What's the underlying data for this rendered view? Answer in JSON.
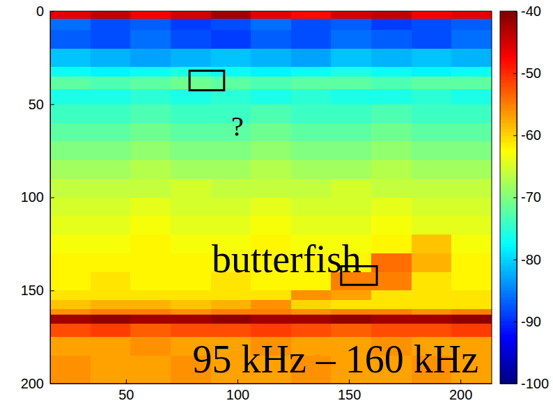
{
  "chart_data": {
    "type": "heatmap",
    "xlim": [
      16,
      214
    ],
    "ylim": [
      0,
      200
    ],
    "xticks": [
      50,
      100,
      150,
      200
    ],
    "yticks": [
      0,
      50,
      100,
      150,
      200
    ],
    "x_edges": [
      16,
      34,
      52,
      70,
      88,
      106,
      124,
      142,
      160,
      178,
      196,
      214
    ],
    "y_edges": [
      0,
      4,
      10,
      20,
      30,
      35,
      42,
      50,
      60,
      70,
      80,
      90,
      100,
      110,
      120,
      130,
      140,
      150,
      155,
      160,
      163,
      168,
      175,
      185,
      200
    ],
    "cells": [
      [
        -46,
        -44,
        -47,
        -45,
        -42,
        -46,
        -48,
        -45,
        -44,
        -47,
        -46
      ],
      [
        -86,
        -88,
        -87,
        -89,
        -88,
        -86,
        -88,
        -87,
        -89,
        -88,
        -87
      ],
      [
        -87,
        -88,
        -86,
        -88,
        -89,
        -87,
        -88,
        -86,
        -87,
        -88,
        -86
      ],
      [
        -81,
        -82,
        -83,
        -82,
        -81,
        -82,
        -83,
        -81,
        -82,
        -81,
        -82
      ],
      [
        -77,
        -78,
        -77,
        -76,
        -77,
        -78,
        -77,
        -76,
        -77,
        -78,
        -77
      ],
      [
        -72,
        -73,
        -72,
        -71,
        -72,
        -73,
        -72,
        -72,
        -73,
        -72,
        -72
      ],
      [
        -76,
        -76,
        -75,
        -76,
        -75,
        -76,
        -75,
        -76,
        -76,
        -75,
        -76
      ],
      [
        -74,
        -74,
        -73,
        -74,
        -74,
        -73,
        -74,
        -74,
        -73,
        -74,
        -74
      ],
      [
        -72,
        -72,
        -71,
        -72,
        -72,
        -71,
        -72,
        -72,
        -71,
        -72,
        -72
      ],
      [
        -70,
        -70,
        -69,
        -70,
        -70,
        -69,
        -70,
        -70,
        -69,
        -70,
        -70
      ],
      [
        -68,
        -68,
        -67,
        -68,
        -68,
        -67,
        -68,
        -68,
        -67,
        -68,
        -68
      ],
      [
        -66,
        -66,
        -66,
        -65,
        -66,
        -66,
        -66,
        -65,
        -66,
        -66,
        -66
      ],
      [
        -65,
        -65,
        -64,
        -65,
        -65,
        -64,
        -65,
        -65,
        -64,
        -65,
        -65
      ],
      [
        -64,
        -64,
        -63,
        -64,
        -64,
        -63,
        -64,
        -64,
        -63,
        -64,
        -64
      ],
      [
        -63,
        -63,
        -62,
        -63,
        -63,
        -62,
        -63,
        -63,
        -62,
        -59,
        -63
      ],
      [
        -62,
        -62,
        -62,
        -62,
        -62,
        -62,
        -62,
        -62,
        -54,
        -58,
        -62
      ],
      [
        -62,
        -61,
        -62,
        -62,
        -61,
        -62,
        -62,
        -55,
        -55,
        -61,
        -62
      ],
      [
        -61,
        -61,
        -61,
        -61,
        -61,
        -61,
        -56,
        -57,
        -61,
        -61,
        -61
      ],
      [
        -59,
        -58,
        -58,
        -59,
        -58,
        -56,
        -60,
        -61,
        -61,
        -61,
        -61
      ],
      [
        -56,
        -55,
        -55,
        -56,
        -55,
        -55,
        -56,
        -55,
        -55,
        -56,
        -55
      ],
      [
        -42,
        -41,
        -42,
        -42,
        -41,
        -42,
        -42,
        -41,
        -42,
        -42,
        -41
      ],
      [
        -52,
        -51,
        -53,
        -52,
        -52,
        -51,
        -52,
        -53,
        -52,
        -52,
        -51
      ],
      [
        -57,
        -57,
        -56,
        -57,
        -57,
        -56,
        -57,
        -57,
        -56,
        -57,
        -57
      ],
      [
        -56,
        -57,
        -57,
        -56,
        -57,
        -57,
        -56,
        -57,
        -57,
        -56,
        -57
      ]
    ],
    "color_range": [
      -100,
      -40
    ],
    "color_ticks": [
      -40,
      -50,
      -60,
      -70,
      -80,
      -90,
      -100
    ],
    "boxes": [
      {
        "x": [
          78.5,
          94
        ],
        "y": [
          32,
          42.5
        ]
      },
      {
        "x": [
          146.5,
          162.5
        ],
        "y": [
          137,
          147
        ]
      }
    ],
    "annotations": [
      {
        "text": "?",
        "x": 100,
        "y": 67
      },
      {
        "text": "butterfish",
        "x": 122,
        "y": 140
      },
      {
        "text": "95 kHz – 160 kHz",
        "x": 144,
        "y": 194
      }
    ]
  }
}
